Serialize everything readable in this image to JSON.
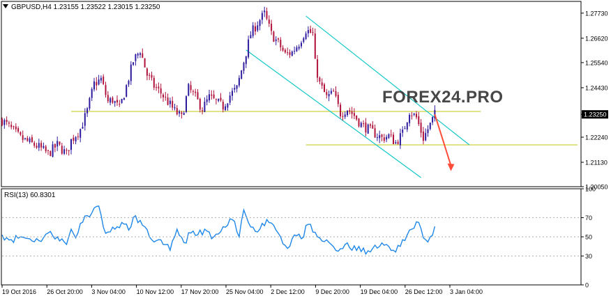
{
  "header": {
    "symbol_line": "GBPUSD,H4  1.23155  1.23522  1.23015  1.23250",
    "rsi_label": "RSI(13) 60.8301"
  },
  "watermark": {
    "text": "FOREX24.PRO"
  },
  "colors": {
    "bull_candle": "#2c1a9e",
    "bear_candle": "#b0113a",
    "channel": "#14c8c8",
    "support": "#d0d040",
    "arrow": "#ff4d3a",
    "rsi_line": "#1e87e8",
    "frame": "#000000",
    "level_dash": "#aaaaaa"
  },
  "chart_data": [
    {
      "type": "candlestick",
      "symbol": "GBPUSD",
      "timeframe": "H4",
      "ylim": [
        1.2005,
        1.2825
      ],
      "y_ticks": [
        "1.27730",
        "1.26620",
        "1.25540",
        "1.24430",
        "1.23250",
        "1.22240",
        "1.21130",
        "1.20050"
      ],
      "current_price": "1.23250",
      "x_ticks": [
        "19 Oct 2016",
        "26 Oct 20:00",
        "3 Nov 04:00",
        "10 Nov 12:00",
        "17 Nov 20:00",
        "25 Nov 04:00",
        "2 Dec 12:00",
        "9 Dec 20:00",
        "19 Dec 04:00",
        "26 Dec 12:00",
        "3 Jan 04:00"
      ],
      "close_path": [
        [
          0,
          1.23
        ],
        [
          4,
          1.226
        ],
        [
          8,
          1.222
        ],
        [
          12,
          1.22
        ],
        [
          16,
          1.218
        ],
        [
          20,
          1.215
        ],
        [
          24,
          1.219
        ],
        [
          28,
          1.215
        ],
        [
          30,
          1.221
        ],
        [
          34,
          1.226
        ],
        [
          37,
          1.234
        ],
        [
          40,
          1.246
        ],
        [
          43,
          1.248
        ],
        [
          46,
          1.238
        ],
        [
          48,
          1.239
        ],
        [
          51,
          1.235
        ],
        [
          54,
          1.245
        ],
        [
          57,
          1.256
        ],
        [
          60,
          1.261
        ],
        [
          63,
          1.25
        ],
        [
          66,
          1.245
        ],
        [
          69,
          1.242
        ],
        [
          72,
          1.238
        ],
        [
          75,
          1.234
        ],
        [
          78,
          1.231
        ],
        [
          81,
          1.244
        ],
        [
          84,
          1.24
        ],
        [
          87,
          1.235
        ],
        [
          90,
          1.24
        ],
        [
          93,
          1.238
        ],
        [
          96,
          1.236
        ],
        [
          99,
          1.241
        ],
        [
          102,
          1.244
        ],
        [
          105,
          1.256
        ],
        [
          108,
          1.268
        ],
        [
          111,
          1.273
        ],
        [
          114,
          1.277
        ],
        [
          117,
          1.268
        ],
        [
          120,
          1.264
        ],
        [
          123,
          1.259
        ],
        [
          126,
          1.26
        ],
        [
          129,
          1.264
        ],
        [
          132,
          1.27
        ],
        [
          135,
          1.268
        ],
        [
          136,
          1.255
        ],
        [
          138,
          1.246
        ],
        [
          141,
          1.24
        ],
        [
          144,
          1.242
        ],
        [
          147,
          1.233
        ],
        [
          150,
          1.235
        ],
        [
          153,
          1.232
        ],
        [
          156,
          1.228
        ],
        [
          159,
          1.226
        ],
        [
          162,
          1.224
        ],
        [
          165,
          1.222
        ],
        [
          168,
          1.223
        ],
        [
          171,
          1.22
        ],
        [
          174,
          1.224
        ],
        [
          177,
          1.234
        ],
        [
          180,
          1.231
        ],
        [
          183,
          1.222
        ],
        [
          186,
          1.228
        ],
        [
          188,
          1.2325
        ]
      ],
      "channel_upper": {
        "x": [
          132,
          203
        ],
        "y": [
          1.276,
          1.219
        ]
      },
      "channel_lower": {
        "x": [
          106,
          182
        ],
        "y": [
          1.261,
          1.2045
        ]
      },
      "support_upper": {
        "x": [
          30,
          208
        ],
        "y": [
          1.2338,
          1.2338
        ]
      },
      "support_lower": {
        "x": [
          132,
          250
        ],
        "y": [
          1.219,
          1.219
        ]
      },
      "forecast_arrow": {
        "x": [
          188,
          195
        ],
        "y": [
          1.2325,
          1.208
        ]
      }
    },
    {
      "type": "line",
      "name": "RSI(13)",
      "ylim": [
        0,
        100
      ],
      "y_ticks": [
        "100",
        "70",
        "50",
        "30",
        "0"
      ],
      "levels": [
        70,
        50,
        30
      ],
      "current_value": 60.8301,
      "x": [
        0,
        4,
        8,
        12,
        16,
        20,
        24,
        28,
        30,
        32,
        34,
        37,
        40,
        42,
        44,
        46,
        49,
        52,
        55,
        58,
        61,
        64,
        67,
        70,
        73,
        76,
        79,
        82,
        85,
        88,
        91,
        94,
        97,
        100,
        103,
        105,
        107,
        109,
        112,
        115,
        118,
        121,
        124,
        127,
        130,
        133,
        135,
        137,
        140,
        143,
        146,
        149,
        152,
        155,
        158,
        161,
        164,
        167,
        170,
        173,
        176,
        178,
        181,
        184,
        186,
        188
      ],
      "values": [
        52,
        47,
        50,
        48,
        46,
        54,
        50,
        42,
        58,
        49,
        64,
        72,
        80,
        82,
        60,
        55,
        58,
        65,
        57,
        72,
        62,
        50,
        46,
        42,
        36,
        58,
        44,
        54,
        52,
        58,
        48,
        53,
        60,
        68,
        50,
        78,
        65,
        60,
        58,
        68,
        62,
        50,
        38,
        52,
        48,
        63,
        55,
        50,
        45,
        42,
        35,
        42,
        36,
        40,
        32,
        38,
        40,
        42,
        36,
        40,
        52,
        58,
        65,
        47,
        50,
        60.8
      ]
    }
  ]
}
